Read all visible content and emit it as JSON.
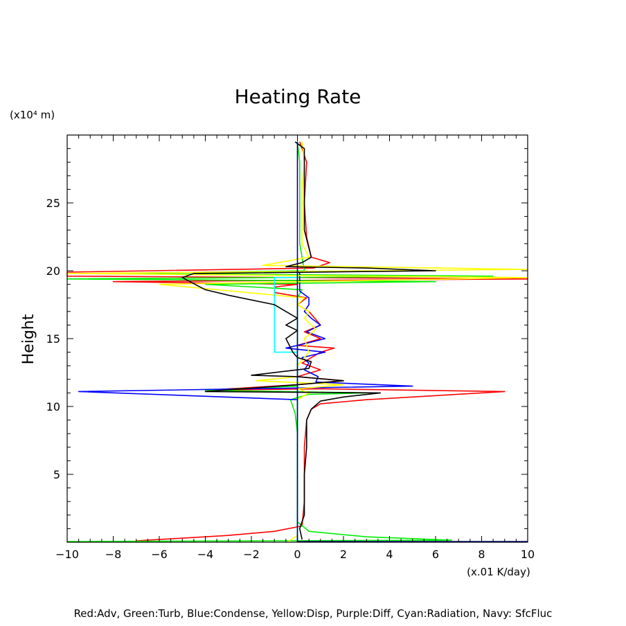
{
  "chart_data": {
    "type": "line",
    "title": "Heating Rate",
    "ylabel": "Height",
    "y_unit": "(x10⁴ m)",
    "x_unit": "(x.01 K/day)",
    "caption": "Red:Adv, Green:Turb, Blue:Condense, Yellow:Disp, Purple:Diff, Cyan:Radiation, Navy: SfcFluc",
    "xlim": [
      -10,
      10
    ],
    "ylim": [
      0,
      30
    ],
    "x_ticks": [
      -10,
      -8,
      -6,
      -4,
      -2,
      0,
      2,
      4,
      6,
      8,
      10
    ],
    "x_tick_labels": [
      "−10",
      "−8",
      "−6",
      "−4",
      "−2",
      "0",
      "2",
      "4",
      "6",
      "8",
      "10"
    ],
    "y_ticks": [
      5,
      10,
      15,
      20,
      25
    ],
    "y_tick_labels": [
      "5",
      "10",
      "15",
      "20",
      "25"
    ],
    "grid": false,
    "series": [
      {
        "name": "Red:Adv",
        "color": "#ff0000",
        "points": [
          [
            -7,
            0.1
          ],
          [
            -3,
            0.5
          ],
          [
            -1,
            0.8
          ],
          [
            0.2,
            1.2
          ],
          [
            0.3,
            3
          ],
          [
            0.3,
            7
          ],
          [
            0.4,
            9
          ],
          [
            0.6,
            9.8
          ],
          [
            1,
            10.2
          ],
          [
            3,
            10.5
          ],
          [
            9,
            11.1
          ],
          [
            1,
            11.3
          ],
          [
            -4,
            11.2
          ],
          [
            0,
            11.6
          ],
          [
            2,
            11.9
          ],
          [
            0,
            12.2
          ],
          [
            1,
            12.7
          ],
          [
            0.2,
            13.2
          ],
          [
            1,
            14
          ],
          [
            1.6,
            14.3
          ],
          [
            0,
            14.5
          ],
          [
            1,
            15
          ],
          [
            0.3,
            15.5
          ],
          [
            1,
            16
          ],
          [
            0.5,
            17
          ],
          [
            0,
            17.5
          ],
          [
            0.4,
            18
          ],
          [
            -1,
            18.4
          ],
          [
            -1,
            18.8
          ],
          [
            0,
            19
          ],
          [
            -8,
            19.2
          ],
          [
            10,
            19.4
          ],
          [
            -10,
            19.6
          ],
          [
            -10,
            19.9
          ],
          [
            0.7,
            20.2
          ],
          [
            1.4,
            20.6
          ],
          [
            0.6,
            21
          ],
          [
            0.4,
            22.5
          ],
          [
            0.3,
            25
          ],
          [
            0.4,
            28
          ],
          [
            0.1,
            29.5
          ]
        ]
      },
      {
        "name": "Green:Turb",
        "color": "#00ee00",
        "points": [
          [
            -10,
            0.05
          ],
          [
            6.7,
            0.15
          ],
          [
            3,
            0.4
          ],
          [
            0.5,
            0.8
          ],
          [
            0,
            1.5
          ],
          [
            0,
            5
          ],
          [
            0,
            8
          ],
          [
            -0.1,
            9.5
          ],
          [
            -0.3,
            10.5
          ],
          [
            0.5,
            10.9
          ],
          [
            3,
            11
          ],
          [
            -4,
            11.2
          ],
          [
            0,
            11.5
          ],
          [
            0,
            12
          ],
          [
            0,
            18
          ],
          [
            0.2,
            18.6
          ],
          [
            -4,
            19
          ],
          [
            6,
            19.2
          ],
          [
            -10,
            19.4
          ],
          [
            8.5,
            19.6
          ],
          [
            -8,
            19.8
          ],
          [
            0.3,
            20
          ],
          [
            0.1,
            22
          ],
          [
            0.1,
            28
          ],
          [
            0,
            29.5
          ]
        ]
      },
      {
        "name": "Blue:Condense",
        "color": "#0000ff",
        "points": [
          [
            0,
            0.05
          ],
          [
            0,
            10.5
          ],
          [
            -9.5,
            11.1
          ],
          [
            5,
            11.5
          ],
          [
            0.8,
            11.8
          ],
          [
            0.9,
            12.2
          ],
          [
            0.3,
            12.7
          ],
          [
            0.5,
            13.2
          ],
          [
            0.2,
            13.6
          ],
          [
            1.2,
            14
          ],
          [
            -0.5,
            14.3
          ],
          [
            0.5,
            14.7
          ],
          [
            1.2,
            15
          ],
          [
            0.4,
            15.5
          ],
          [
            1,
            16
          ],
          [
            0.6,
            16.5
          ],
          [
            0.3,
            17
          ],
          [
            0.5,
            17.5
          ],
          [
            0.5,
            18
          ],
          [
            0.1,
            18.5
          ],
          [
            0.1,
            19
          ],
          [
            0.1,
            19.8
          ],
          [
            0,
            20
          ]
        ]
      },
      {
        "name": "Yellow:Disp",
        "color": "#ffff00",
        "points": [
          [
            -0.4,
            0.05
          ],
          [
            0,
            0.5
          ],
          [
            0,
            5
          ],
          [
            0,
            10.5
          ],
          [
            0.5,
            11
          ],
          [
            0,
            11.3
          ],
          [
            2,
            11.6
          ],
          [
            -1.8,
            11.9
          ],
          [
            0,
            12.2
          ],
          [
            0,
            13
          ],
          [
            0.5,
            14
          ],
          [
            0.3,
            15
          ],
          [
            0.8,
            15.7
          ],
          [
            0.3,
            16.5
          ],
          [
            0.5,
            17
          ],
          [
            0,
            17.5
          ],
          [
            0.3,
            18
          ],
          [
            -6,
            19
          ],
          [
            10,
            19.5
          ],
          [
            -10,
            19.8
          ],
          [
            10,
            20.1
          ],
          [
            -1.5,
            20.4
          ],
          [
            0.5,
            21
          ],
          [
            0.2,
            22
          ],
          [
            0.2,
            26
          ],
          [
            0.3,
            28
          ],
          [
            0.2,
            29.5
          ]
        ]
      },
      {
        "name": "Cyan:Radiation",
        "color": "#00ffff",
        "points": [
          [
            0,
            0.05
          ],
          [
            0,
            14
          ],
          [
            -1,
            14
          ],
          [
            -1,
            19.5
          ],
          [
            0,
            19.5
          ],
          [
            0,
            20
          ]
        ]
      },
      {
        "name": "Black",
        "color": "#000000",
        "points": [
          [
            0.2,
            0.2
          ],
          [
            0.1,
            1
          ],
          [
            0.3,
            2
          ],
          [
            0.3,
            5
          ],
          [
            0.4,
            7
          ],
          [
            0.4,
            9
          ],
          [
            0.6,
            9.8
          ],
          [
            1,
            10.4
          ],
          [
            2,
            10.7
          ],
          [
            3.6,
            11
          ],
          [
            -4,
            11.1
          ],
          [
            0,
            11.6
          ],
          [
            2,
            11.9
          ],
          [
            0,
            12.2
          ],
          [
            -2,
            12.3
          ],
          [
            0.5,
            12.8
          ],
          [
            0.6,
            13.3
          ],
          [
            0,
            13.6
          ],
          [
            -0.2,
            14
          ],
          [
            -0.5,
            15
          ],
          [
            0,
            15.6
          ],
          [
            -0.5,
            16
          ],
          [
            0,
            16.5
          ],
          [
            -0.5,
            17
          ],
          [
            -1,
            17.5
          ],
          [
            -3,
            18.2
          ],
          [
            -4,
            18.6
          ],
          [
            -5,
            19.5
          ],
          [
            -4.5,
            19.8
          ],
          [
            6,
            20
          ],
          [
            3,
            20.2
          ],
          [
            -0.5,
            20.3
          ],
          [
            0.2,
            20.6
          ],
          [
            0.6,
            21
          ],
          [
            0.3,
            23
          ],
          [
            0.3,
            26
          ],
          [
            0.3,
            29
          ],
          [
            -0.1,
            29.5
          ]
        ]
      },
      {
        "name": "Navy: SfcFluc",
        "color": "#000080",
        "points": [
          [
            10,
            0.05
          ],
          [
            0,
            0.05
          ],
          [
            0,
            29.5
          ]
        ]
      }
    ]
  }
}
